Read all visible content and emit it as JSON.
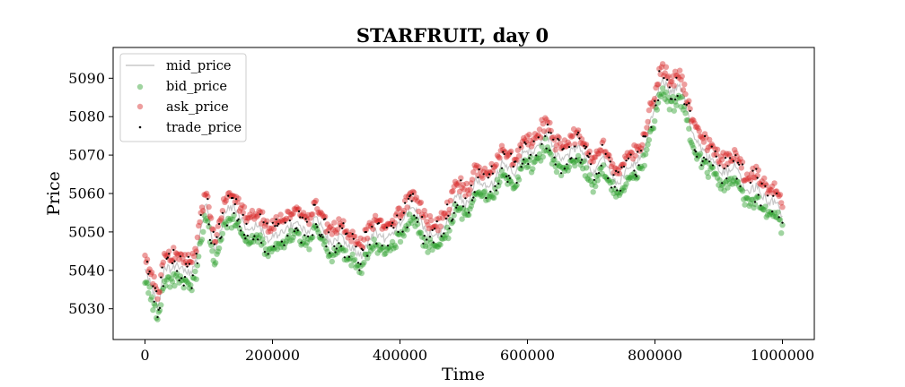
{
  "chart_data": {
    "type": "scatter",
    "title": "STARFRUIT, day 0",
    "xlabel": "Time",
    "ylabel": "Price",
    "xlim": [
      -50000,
      1050000
    ],
    "ylim": [
      5022,
      5098
    ],
    "xticks": [
      0,
      200000,
      400000,
      600000,
      800000,
      1000000
    ],
    "xtick_labels": [
      "0",
      "200000",
      "400000",
      "600000",
      "800000",
      "1000000"
    ],
    "yticks": [
      5030,
      5040,
      5050,
      5060,
      5070,
      5080,
      5090
    ],
    "ytick_labels": [
      "5030",
      "5040",
      "5050",
      "5060",
      "5070",
      "5080",
      "5090"
    ],
    "grid": false,
    "legend_position": "upper-left",
    "series": [
      {
        "name": "mid_price",
        "kind": "line",
        "color": "#c8c8c8"
      },
      {
        "name": "bid_price",
        "kind": "scatter",
        "color": "#2ca02c",
        "offset": -3.2
      },
      {
        "name": "ask_price",
        "kind": "scatter",
        "color": "#d62728",
        "offset": 3.2
      },
      {
        "name": "trade_price",
        "kind": "scatter",
        "color": "#000000"
      }
    ],
    "mid_price_path": {
      "x": [
        0,
        10000,
        20000,
        30000,
        50000,
        70000,
        80000,
        95000,
        110000,
        125000,
        140000,
        160000,
        175000,
        195000,
        215000,
        235000,
        255000,
        270000,
        290000,
        305000,
        320000,
        340000,
        360000,
        380000,
        400000,
        420000,
        440000,
        460000,
        475000,
        490000,
        505000,
        520000,
        540000,
        560000,
        580000,
        595000,
        610000,
        630000,
        645000,
        660000,
        680000,
        700000,
        720000,
        740000,
        760000,
        780000,
        795000,
        810000,
        825000,
        840000,
        860000,
        880000,
        895000,
        910000,
        925000,
        945000,
        960000,
        975000,
        990000,
        1000000
      ],
      "y": [
        5040,
        5036,
        5030,
        5040,
        5041,
        5039,
        5042,
        5058,
        5044,
        5055,
        5057,
        5050,
        5052,
        5048,
        5050,
        5052,
        5050,
        5054,
        5047,
        5049,
        5046,
        5044,
        5050,
        5048,
        5052,
        5057,
        5050,
        5049,
        5053,
        5060,
        5057,
        5064,
        5061,
        5068,
        5065,
        5072,
        5070,
        5076,
        5070,
        5069,
        5073,
        5065,
        5069,
        5062,
        5067,
        5070,
        5080,
        5090,
        5086,
        5088,
        5075,
        5070,
        5068,
        5065,
        5067,
        5060,
        5062,
        5058,
        5058,
        5053
      ]
    }
  }
}
